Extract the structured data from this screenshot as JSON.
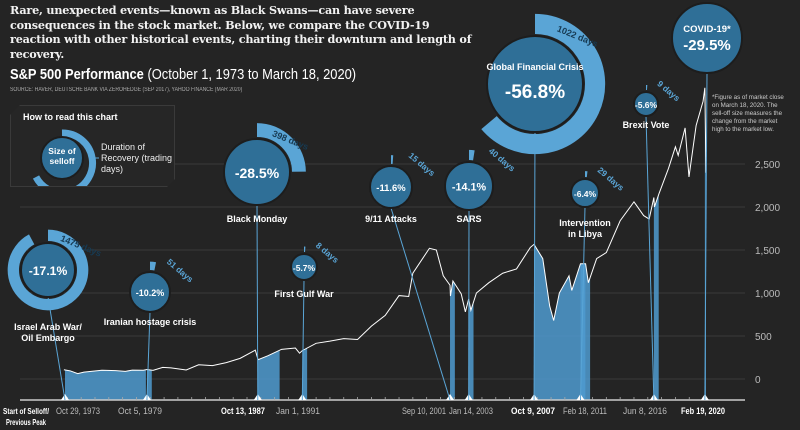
{
  "intro": "Rare, unexpected events—known as Black Swans—can have severe consequences in the stock market. Below, we compare the COVID-19 reaction with other historical events, charting their downturn and length of recovery.",
  "title": {
    "main": "S&P 500 Performance",
    "range": "(October 1, 1973 to March 18, 2020)"
  },
  "source": "SOURCE: HAVER, DEUTSCHE BANK VIA ZEROHEDGE (SEP 2017), YAHOO FINANCE (MAR 2020)",
  "legend": {
    "title": "How to read this chart",
    "size": "Size of selloff",
    "duration": "Duration of Recovery (trading days)"
  },
  "note": "*Figure as of market close on March 18, 2020. The sell-off size measures the change from the market high to the market low.",
  "start_label": "Start of Selloff/ Previous Peak",
  "colors": {
    "background": "#242424",
    "bubble": "#2f6f97",
    "ring": "#5aa5d6",
    "line": "#ffffff",
    "shade": "#4f9bd0"
  },
  "chart_data": {
    "type": "line",
    "title": "S&P 500 Performance",
    "ylabel": "",
    "ylim": [
      0,
      3400
    ],
    "yticks": [
      {
        "v": 0,
        "label": "0"
      },
      {
        "v": 500,
        "label": "500"
      },
      {
        "v": 1000,
        "label": "1,000"
      },
      {
        "v": 1500,
        "label": "1,500"
      },
      {
        "v": 2000,
        "label": "2,000"
      },
      {
        "v": 2500,
        "label": "2,500"
      }
    ],
    "xlim": [
      1973.75,
      2020.21
    ],
    "grid": true,
    "series": [
      {
        "name": "S&P 500",
        "points": [
          [
            1973.75,
            108
          ],
          [
            1974.2,
            95
          ],
          [
            1974.75,
            63
          ],
          [
            1975.2,
            80
          ],
          [
            1975.8,
            90
          ],
          [
            1976.5,
            102
          ],
          [
            1977.5,
            98
          ],
          [
            1978.2,
            89
          ],
          [
            1978.7,
            103
          ],
          [
            1979.5,
            102
          ],
          [
            1979.76,
            110
          ],
          [
            1980.2,
            100
          ],
          [
            1980.9,
            135
          ],
          [
            1981.5,
            130
          ],
          [
            1982.6,
            105
          ],
          [
            1983.5,
            165
          ],
          [
            1984.5,
            155
          ],
          [
            1985.5,
            190
          ],
          [
            1986.5,
            240
          ],
          [
            1987.6,
            336
          ],
          [
            1987.8,
            224
          ],
          [
            1988.5,
            270
          ],
          [
            1989.5,
            345
          ],
          [
            1990.5,
            360
          ],
          [
            1990.8,
            300
          ],
          [
            1991.0,
            330
          ],
          [
            1992.0,
            415
          ],
          [
            1993.0,
            440
          ],
          [
            1994.0,
            470
          ],
          [
            1995.0,
            460
          ],
          [
            1996.0,
            615
          ],
          [
            1997.0,
            740
          ],
          [
            1998.0,
            970
          ],
          [
            1998.7,
            960
          ],
          [
            1999.0,
            1230
          ],
          [
            2000.2,
            1520
          ],
          [
            2000.7,
            1500
          ],
          [
            2001.2,
            1200
          ],
          [
            2001.69,
            1090
          ],
          [
            2001.72,
            965
          ],
          [
            2001.9,
            1140
          ],
          [
            2002.5,
            990
          ],
          [
            2002.8,
            780
          ],
          [
            2003.04,
            930
          ],
          [
            2003.2,
            800
          ],
          [
            2003.6,
            1000
          ],
          [
            2004.5,
            1120
          ],
          [
            2005.5,
            1230
          ],
          [
            2006.5,
            1280
          ],
          [
            2007.5,
            1530
          ],
          [
            2007.77,
            1565
          ],
          [
            2008.4,
            1400
          ],
          [
            2008.9,
            850
          ],
          [
            2009.19,
            680
          ],
          [
            2009.6,
            1000
          ],
          [
            2010.3,
            1200
          ],
          [
            2010.5,
            1030
          ],
          [
            2011.13,
            1340
          ],
          [
            2011.5,
            1340
          ],
          [
            2011.7,
            1120
          ],
          [
            2012.3,
            1400
          ],
          [
            2013.0,
            1470
          ],
          [
            2014.0,
            1840
          ],
          [
            2015.0,
            2060
          ],
          [
            2015.7,
            1900
          ],
          [
            2016.1,
            1860
          ],
          [
            2016.44,
            2110
          ],
          [
            2016.48,
            2000
          ],
          [
            2016.8,
            2150
          ],
          [
            2017.5,
            2450
          ],
          [
            2018.0,
            2700
          ],
          [
            2018.2,
            2600
          ],
          [
            2018.7,
            2920
          ],
          [
            2018.98,
            2350
          ],
          [
            2019.5,
            2950
          ],
          [
            2020.0,
            3230
          ],
          [
            2020.13,
            3386
          ],
          [
            2020.21,
            2398
          ]
        ]
      }
    ],
    "events": [
      {
        "name": "Israel Arab War/\nOil Embargo",
        "date": "Oct 29, 1973",
        "t": 1973.83,
        "selloff": "-17.1%",
        "days": 1475,
        "days_label": "1475 days",
        "bold": false
      },
      {
        "name": "Iranian hostage crisis",
        "date": "Oct 5, 1979",
        "t": 1979.76,
        "selloff": "-10.2%",
        "days": 51,
        "days_label": "51 days",
        "bold": false
      },
      {
        "name": "Black Monday",
        "date": "Oct 13, 1987",
        "t": 1987.78,
        "selloff": "-28.5%",
        "days": 398,
        "days_label": "398 days",
        "bold": true
      },
      {
        "name": "First Gulf War",
        "date": "Jan 1, 1991",
        "t": 1991.0,
        "selloff": "-5.7%",
        "days": 8,
        "days_label": "8 days",
        "bold": false
      },
      {
        "name": "9/11 Attacks",
        "date": "Sep 10, 2001",
        "t": 2001.69,
        "selloff": "-11.6%",
        "days": 15,
        "days_label": "15 days",
        "bold": false
      },
      {
        "name": "SARS",
        "date": "Jan 14, 2003",
        "t": 2003.04,
        "selloff": "-14.1%",
        "days": 40,
        "days_label": "40 days",
        "bold": false
      },
      {
        "name": "Global Financial Crisis",
        "date": "Oct 9, 2007",
        "t": 2007.77,
        "selloff": "-56.8%",
        "days": 1022,
        "days_label": "1022 days",
        "bold": true
      },
      {
        "name": "Intervention\nin Libya",
        "date": "Feb 18, 2011",
        "t": 2011.13,
        "selloff": "-6.4%",
        "days": 29,
        "days_label": "29 days",
        "bold": false
      },
      {
        "name": "Brexit Vote",
        "date": "Jun 8, 2016",
        "t": 2016.44,
        "selloff": "-5.6%",
        "days": 9,
        "days_label": "9 days",
        "bold": false
      },
      {
        "name": "COVID-19*",
        "date": "Feb 19, 2020",
        "t": 2020.13,
        "selloff": "-29.5%",
        "days": null,
        "days_label": null,
        "bold": true
      }
    ]
  }
}
